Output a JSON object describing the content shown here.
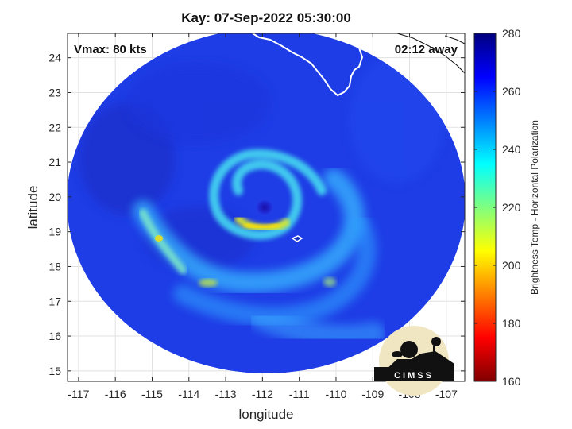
{
  "title": "Kay: 07-Sep-2022 05:30:00",
  "annotations": {
    "vmax": "Vmax: 80 kts",
    "time_away": "02:12 away"
  },
  "axes": {
    "xlabel": "longitude",
    "ylabel": "latitude",
    "xlim": [
      -117.3,
      -106.5
    ],
    "ylim": [
      14.7,
      24.7
    ],
    "xticks": [
      -117,
      -116,
      -115,
      -114,
      -113,
      -112,
      -111,
      -110,
      -109,
      -108,
      -107
    ],
    "yticks": [
      15,
      16,
      17,
      18,
      19,
      20,
      21,
      22,
      23,
      24
    ],
    "xticklabels": [
      "-117",
      "-116",
      "-115",
      "-114",
      "-113",
      "-112",
      "-111",
      "-110",
      "-109",
      "-108",
      "-107"
    ],
    "yticklabels": [
      "15",
      "16",
      "17",
      "18",
      "19",
      "20",
      "21",
      "22",
      "23",
      "24"
    ],
    "grid": true
  },
  "colorbar": {
    "label": "Brightness Temp - Horizontal Polarization",
    "min": 160,
    "max": 280,
    "ticks": [
      160,
      180,
      200,
      220,
      240,
      260,
      280
    ],
    "ticklabels": [
      "160",
      "180",
      "200",
      "220",
      "240",
      "260",
      "280"
    ],
    "colormap": "jet"
  },
  "storm": {
    "name": "Kay",
    "center_lon": -111.9,
    "center_lat": 19.7
  },
  "logo": {
    "text": "CIMSS"
  },
  "colors": {
    "cold": "#7f0000",
    "warm": "#00007f",
    "background_field": "#1e3de6"
  }
}
